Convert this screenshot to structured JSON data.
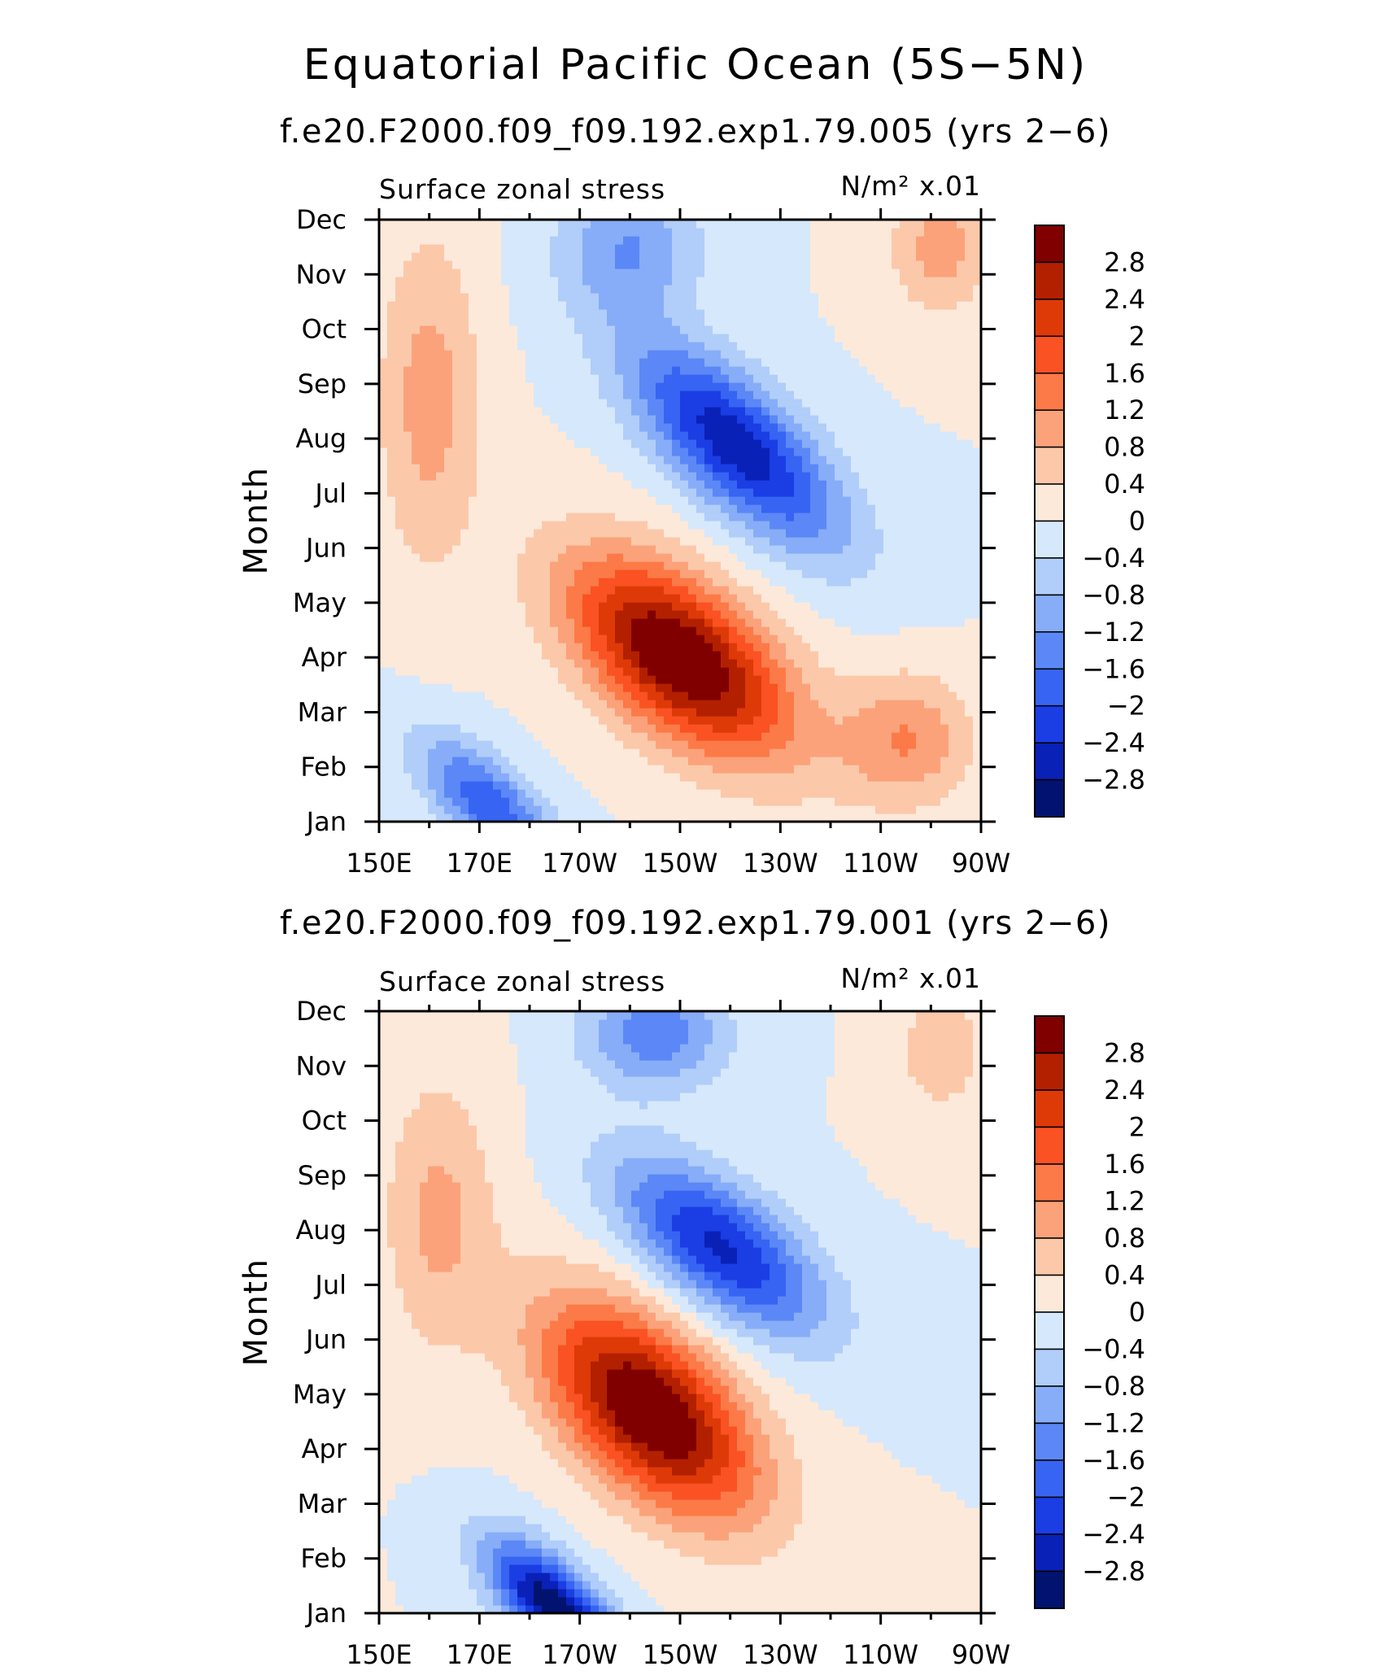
{
  "chart_data": {
    "title": "Equatorial Pacific Ocean (5S−5N)",
    "panels": [
      {
        "type": "heatmap",
        "subtitle": "f.e20.F2000.f09_f09.192.exp1.79.005 (yrs 2−6)",
        "variable": "Surface zonal stress",
        "units": "N/m² x.01",
        "xlabel": "",
        "ylabel": "Month",
        "x_ticks": [
          "150E",
          "170E",
          "170W",
          "150W",
          "130W",
          "110W",
          "90W"
        ],
        "x_values": [
          150,
          170,
          190,
          210,
          230,
          250,
          270
        ],
        "y_ticks": [
          "Jan",
          "Feb",
          "Mar",
          "Apr",
          "May",
          "Jun",
          "Jul",
          "Aug",
          "Sep",
          "Oct",
          "Nov",
          "Dec"
        ],
        "features": [
          {
            "lon": 210,
            "month": 4,
            "amp": 3.4,
            "slon": 22,
            "smon": 1.5,
            "tilt": 5.5
          },
          {
            "lon": 221,
            "month": 7.9,
            "amp": -2.7,
            "slon": 21,
            "smon": 1.3,
            "tilt": 4
          },
          {
            "lon": 172,
            "month": 1.3,
            "amp": -1.9,
            "slon": 14,
            "smon": 0.9,
            "tilt": 4
          },
          {
            "lon": 160,
            "month": 8.7,
            "amp": 1.0,
            "slon": 10,
            "smon": 3.0,
            "tilt": 0
          },
          {
            "lon": 262,
            "month": 11.5,
            "amp": 1.0,
            "slon": 10,
            "smon": 1.2,
            "tilt": 0
          },
          {
            "lon": 255,
            "month": 2.5,
            "amp": 1.2,
            "slon": 13,
            "smon": 1.2,
            "tilt": 0
          },
          {
            "lon": 200,
            "month": 11.5,
            "amp": -1.2,
            "slon": 14,
            "smon": 1.2,
            "tilt": 0
          }
        ]
      },
      {
        "type": "heatmap",
        "subtitle": "f.e20.F2000.f09_f09.192.exp1.79.001 (yrs 2−6)",
        "variable": "Surface zonal stress",
        "units": "N/m² x.01",
        "xlabel": "",
        "ylabel": "Month",
        "x_ticks": [
          "150E",
          "170E",
          "170W",
          "150W",
          "130W",
          "110W",
          "90W"
        ],
        "x_values": [
          150,
          170,
          190,
          210,
          230,
          250,
          270
        ],
        "y_ticks": [
          "Jan",
          "Feb",
          "Mar",
          "Apr",
          "May",
          "Jun",
          "Jul",
          "Aug",
          "Sep",
          "Oct",
          "Nov",
          "Dec"
        ],
        "features": [
          {
            "lon": 204,
            "month": 4.7,
            "amp": 3.4,
            "slon": 21,
            "smon": 1.6,
            "tilt": 5
          },
          {
            "lon": 218,
            "month": 7.7,
            "amp": -2.5,
            "slon": 20,
            "smon": 1.2,
            "tilt": 5
          },
          {
            "lon": 185,
            "month": 1.1,
            "amp": -3.2,
            "slon": 13,
            "smon": 0.9,
            "tilt": 4
          },
          {
            "lon": 162,
            "month": 8.3,
            "amp": 0.9,
            "slon": 11,
            "smon": 2.5,
            "tilt": 0
          },
          {
            "lon": 262,
            "month": 11.3,
            "amp": 0.7,
            "slon": 9,
            "smon": 1.2,
            "tilt": 0
          },
          {
            "lon": 205,
            "month": 11.6,
            "amp": -1.5,
            "slon": 14,
            "smon": 1.0,
            "tilt": 0
          }
        ]
      }
    ],
    "colorbar": {
      "labels": [
        "2.8",
        "2.4",
        "2",
        "1.6",
        "1.2",
        "0.8",
        "0.4",
        "0",
        "−0.4",
        "−0.8",
        "−1.2",
        "−1.6",
        "−2",
        "−2.4",
        "−2.8"
      ],
      "levels": [
        2.8,
        2.4,
        2,
        1.6,
        1.2,
        0.8,
        0.4,
        0,
        -0.4,
        -0.8,
        -1.2,
        -1.6,
        -2,
        -2.4,
        -2.8
      ],
      "colors": [
        "#800000",
        "#b32000",
        "#de3a08",
        "#fa5222",
        "#fc7a48",
        "#fba27a",
        "#fcc8aa",
        "#fde9da",
        "#d6e8fb",
        "#b1cdf9",
        "#87adf8",
        "#5b88f6",
        "#3764f2",
        "#1a3ee4",
        "#0a21b8",
        "#02136f"
      ]
    }
  }
}
